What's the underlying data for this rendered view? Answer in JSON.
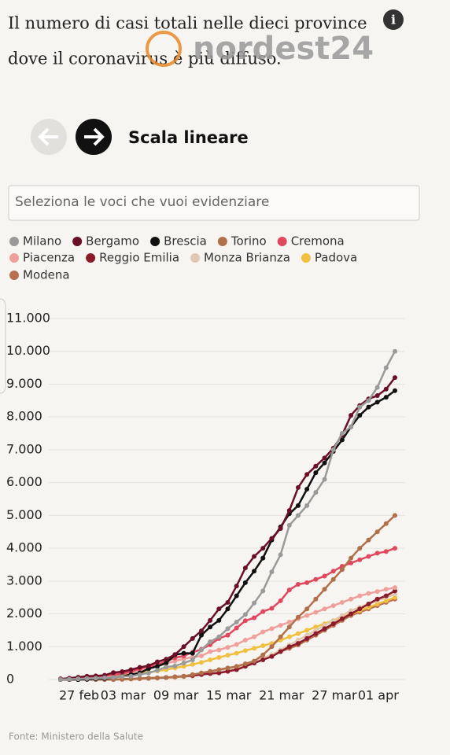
{
  "chart_data": {
    "type": "line",
    "title_lines": [
      "Il numero di casi totali nelle dieci province",
      "dove il coronavirus è più diffuso."
    ],
    "watermark": "nordest24",
    "scale_label": "Scala lineare",
    "search_placeholder": "Seleziona le voci che vuoi evidenziare",
    "source": "Fonte: Ministero della Salute",
    "categories": [
      null,
      null,
      null,
      "27 feb",
      null,
      null,
      null,
      null,
      "03 mar",
      null,
      null,
      null,
      null,
      null,
      "09 mar",
      null,
      null,
      null,
      null,
      null,
      "15 mar",
      null,
      null,
      null,
      null,
      null,
      "21 mar",
      null,
      null,
      null,
      null,
      null,
      "27 mar",
      null,
      null,
      null,
      null,
      "01 apr",
      null
    ],
    "ylim": [
      0,
      11000
    ],
    "yticks": [
      0,
      {
        "value": 1000,
        "label": "1.000"
      },
      {
        "value": 2000,
        "label": "2.000"
      },
      {
        "value": 3000,
        "label": "3.000"
      },
      {
        "value": 4000,
        "label": "4.000"
      },
      {
        "value": 5000,
        "label": "5.000"
      },
      {
        "value": 6000,
        "label": "6.000"
      },
      {
        "value": 7000,
        "label": "7.000"
      },
      {
        "value": 8000,
        "label": "8.000"
      },
      {
        "value": 9000,
        "label": "9.000"
      },
      {
        "value": 10000,
        "label": "10.000"
      },
      {
        "value": 11000,
        "label": "11.000"
      }
    ],
    "grid": true,
    "legend": "top",
    "series": [
      {
        "name": "Milano",
        "color": "#9a9a9a",
        "values": [
          0,
          10,
          20,
          30,
          40,
          50,
          60,
          90,
          100,
          150,
          200,
          280,
          380,
          410,
          500,
          600,
          900,
          1150,
          1300,
          1550,
          1750,
          1980,
          2330,
          2700,
          3280,
          3800,
          4700,
          5000,
          5300,
          5700,
          6100,
          7000,
          7500,
          7700,
          8300,
          8500,
          8900,
          9500,
          10000
        ]
      },
      {
        "name": "Bergamo",
        "color": "#6b0f26",
        "values": [
          20,
          40,
          70,
          100,
          110,
          130,
          210,
          240,
          300,
          370,
          420,
          540,
          620,
          760,
          1000,
          1250,
          1480,
          1800,
          2150,
          2350,
          2850,
          3400,
          3750,
          4000,
          4300,
          4600,
          5150,
          5850,
          6250,
          6500,
          6750,
          7050,
          7450,
          8050,
          8350,
          8550,
          8650,
          8850,
          9200
        ]
      },
      {
        "name": "Brescia",
        "color": "#111111",
        "values": [
          0,
          0,
          0,
          10,
          20,
          30,
          60,
          100,
          150,
          200,
          330,
          400,
          500,
          750,
          800,
          800,
          1350,
          1600,
          1800,
          2150,
          2550,
          2950,
          3300,
          3700,
          4250,
          4650,
          5050,
          5300,
          5800,
          6300,
          6600,
          6950,
          7300,
          7700,
          8050,
          8300,
          8450,
          8600,
          8800
        ]
      },
      {
        "name": "Torino",
        "color": "#b0704a",
        "values": [
          0,
          0,
          0,
          0,
          0,
          0,
          0,
          10,
          20,
          30,
          40,
          50,
          60,
          80,
          100,
          150,
          200,
          250,
          300,
          350,
          400,
          480,
          560,
          750,
          1000,
          1300,
          1600,
          1900,
          2150,
          2450,
          2750,
          3050,
          3350,
          3700,
          4000,
          4250,
          4500,
          4750,
          5000
        ]
      },
      {
        "name": "Cremona",
        "color": "#e0485e",
        "values": [
          0,
          10,
          30,
          60,
          90,
          120,
          150,
          180,
          240,
          330,
          400,
          450,
          560,
          660,
          720,
          830,
          920,
          1060,
          1250,
          1350,
          1570,
          1790,
          1880,
          2070,
          2170,
          2400,
          2730,
          2900,
          2950,
          3050,
          3150,
          3300,
          3450,
          3550,
          3650,
          3750,
          3850,
          3900,
          4000
        ]
      },
      {
        "name": "Piacenza",
        "color": "#f0a09a",
        "values": [
          0,
          0,
          10,
          30,
          50,
          80,
          120,
          180,
          220,
          280,
          350,
          420,
          490,
          560,
          630,
          680,
          720,
          850,
          900,
          980,
          1070,
          1200,
          1300,
          1450,
          1550,
          1650,
          1750,
          1850,
          1950,
          2050,
          2150,
          2250,
          2350,
          2450,
          2550,
          2620,
          2680,
          2750,
          2800
        ]
      },
      {
        "name": "Reggio Emilia",
        "color": "#8b1a2b",
        "values": [
          0,
          0,
          0,
          0,
          0,
          0,
          0,
          10,
          20,
          30,
          40,
          50,
          60,
          80,
          100,
          120,
          150,
          180,
          200,
          250,
          300,
          400,
          500,
          600,
          700,
          850,
          1000,
          1100,
          1250,
          1400,
          1550,
          1700,
          1850,
          2000,
          2150,
          2300,
          2450,
          2550,
          2700
        ]
      },
      {
        "name": "Monza Brianza",
        "color": "#e0c9b0",
        "values": [
          0,
          0,
          0,
          0,
          0,
          0,
          0,
          0,
          10,
          20,
          30,
          40,
          50,
          60,
          80,
          100,
          150,
          200,
          250,
          300,
          350,
          450,
          550,
          650,
          750,
          900,
          1050,
          1200,
          1350,
          1500,
          1650,
          1800,
          1950,
          2100,
          2200,
          2300,
          2400,
          2500,
          2600
        ]
      },
      {
        "name": "Padova",
        "color": "#f0c040",
        "values": [
          0,
          20,
          40,
          60,
          80,
          100,
          120,
          150,
          170,
          190,
          220,
          260,
          300,
          350,
          400,
          460,
          520,
          600,
          670,
          740,
          800,
          880,
          950,
          1030,
          1100,
          1200,
          1300,
          1400,
          1500,
          1600,
          1700,
          1800,
          1900,
          2000,
          2100,
          2200,
          2300,
          2400,
          2500
        ]
      },
      {
        "name": "Modena",
        "color": "#b87050",
        "values": [
          0,
          0,
          0,
          0,
          0,
          0,
          0,
          0,
          10,
          20,
          30,
          40,
          60,
          80,
          100,
          140,
          180,
          220,
          260,
          300,
          380,
          460,
          550,
          650,
          750,
          850,
          950,
          1050,
          1200,
          1350,
          1500,
          1650,
          1800,
          1950,
          2050,
          2150,
          2250,
          2350,
          2450
        ]
      }
    ]
  }
}
